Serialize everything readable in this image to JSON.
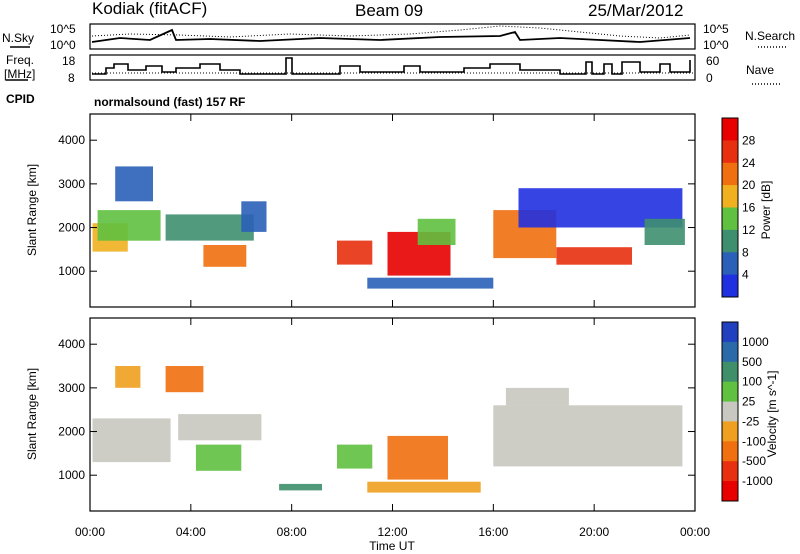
{
  "header": {
    "station": "Kodiak (fitACF)",
    "beam": "Beam 09",
    "date": "25/Mar/2012"
  },
  "summary_panel": {
    "left_labels": [
      "N.Sky",
      "Freq.",
      "[MHz]",
      "CPID"
    ],
    "right_labels": [
      "N.Search",
      "Nave"
    ],
    "noise_ticks_left": [
      "10^5",
      "10^0"
    ],
    "noise_ticks_right": [
      "10^5",
      "10^0"
    ],
    "freq_ticks": [
      "18",
      "8"
    ],
    "nave_ticks": [
      "60",
      "0"
    ],
    "cpid_text": "normalsound (fast) 157 RF"
  },
  "chart_data": [
    {
      "type": "heatmap",
      "name": "power",
      "ylabel": "Slant Range [km]",
      "xlabel": "",
      "x_range_hours": [
        0,
        24
      ],
      "ylim": [
        180,
        4600
      ],
      "y_ticks": [
        "1000",
        "2000",
        "3000",
        "4000"
      ],
      "x_ticks": [
        "00:00",
        "04:00",
        "08:00",
        "12:00",
        "16:00",
        "20:00",
        "00:00"
      ],
      "colorbar_label": "Power [dB]",
      "colorbar_ticks": [
        "4",
        "8",
        "12",
        "16",
        "20",
        "24",
        "28"
      ],
      "colorbar_colors": [
        "#2030e0",
        "#2a60b8",
        "#3e8f70",
        "#60c040",
        "#f0b020",
        "#f07010",
        "#e83010",
        "#e80000"
      ],
      "regions": [
        {
          "t0": 0.1,
          "t1": 1.5,
          "r0": 1450,
          "r1": 2100,
          "color": "#f0b020"
        },
        {
          "t0": 0.3,
          "t1": 2.8,
          "r0": 1700,
          "r1": 2400,
          "color": "#60c040"
        },
        {
          "t0": 1.0,
          "t1": 2.5,
          "r0": 2600,
          "r1": 3400,
          "color": "#2a60b8"
        },
        {
          "t0": 3.0,
          "t1": 6.5,
          "r0": 1700,
          "r1": 2300,
          "color": "#3e8f70"
        },
        {
          "t0": 4.5,
          "t1": 6.2,
          "r0": 1100,
          "r1": 1600,
          "color": "#f07010"
        },
        {
          "t0": 6.0,
          "t1": 7.0,
          "r0": 1900,
          "r1": 2600,
          "color": "#2a60b8"
        },
        {
          "t0": 9.8,
          "t1": 11.2,
          "r0": 1150,
          "r1": 1700,
          "color": "#e83010"
        },
        {
          "t0": 11.8,
          "t1": 14.3,
          "r0": 900,
          "r1": 1900,
          "color": "#e80000"
        },
        {
          "t0": 13.0,
          "t1": 14.5,
          "r0": 1600,
          "r1": 2200,
          "color": "#60c040"
        },
        {
          "t0": 11.0,
          "t1": 16.0,
          "r0": 600,
          "r1": 850,
          "color": "#2a60b8"
        },
        {
          "t0": 16.0,
          "t1": 18.5,
          "r0": 1300,
          "r1": 2400,
          "color": "#f07010"
        },
        {
          "t0": 18.5,
          "t1": 21.5,
          "r0": 1150,
          "r1": 1550,
          "color": "#e83010"
        },
        {
          "t0": 17.0,
          "t1": 23.5,
          "r0": 2000,
          "r1": 2900,
          "color": "#2030e0"
        },
        {
          "t0": 22.0,
          "t1": 23.6,
          "r0": 1600,
          "r1": 2200,
          "color": "#3e8f70"
        }
      ]
    },
    {
      "type": "heatmap",
      "name": "velocity",
      "ylabel": "Slant Range [km]",
      "xlabel": "Time UT",
      "x_range_hours": [
        0,
        24
      ],
      "ylim": [
        180,
        4600
      ],
      "y_ticks": [
        "1000",
        "2000",
        "3000",
        "4000"
      ],
      "x_ticks": [
        "00:00",
        "04:00",
        "08:00",
        "12:00",
        "16:00",
        "20:00",
        "00:00"
      ],
      "colorbar_label": "Velocity [m s^-1]",
      "colorbar_ticks": [
        "1000",
        "500",
        "100",
        "25",
        "-25",
        "-100",
        "-500",
        "-1000"
      ],
      "colorbar_colors": [
        "#2040c0",
        "#2a6aa8",
        "#3e8f6a",
        "#60c040",
        "#c8c8c0",
        "#f0a020",
        "#f07010",
        "#e83010",
        "#e80000"
      ],
      "regions": [
        {
          "t0": 0.1,
          "t1": 3.2,
          "r0": 1300,
          "r1": 2300,
          "color": "#c8c8c0"
        },
        {
          "t0": 3.5,
          "t1": 6.8,
          "r0": 1800,
          "r1": 2400,
          "color": "#c8c8c0"
        },
        {
          "t0": 1.0,
          "t1": 2.0,
          "r0": 3000,
          "r1": 3500,
          "color": "#f0a020"
        },
        {
          "t0": 3.0,
          "t1": 4.5,
          "r0": 2900,
          "r1": 3500,
          "color": "#f07010"
        },
        {
          "t0": 4.2,
          "t1": 6.0,
          "r0": 1100,
          "r1": 1700,
          "color": "#60c040"
        },
        {
          "t0": 7.5,
          "t1": 9.2,
          "r0": 650,
          "r1": 800,
          "color": "#3e8f6a"
        },
        {
          "t0": 9.8,
          "t1": 11.2,
          "r0": 1150,
          "r1": 1700,
          "color": "#60c040"
        },
        {
          "t0": 11.8,
          "t1": 14.2,
          "r0": 900,
          "r1": 1900,
          "color": "#f07010"
        },
        {
          "t0": 11.0,
          "t1": 15.5,
          "r0": 600,
          "r1": 850,
          "color": "#f0a020"
        },
        {
          "t0": 16.0,
          "t1": 23.5,
          "r0": 1200,
          "r1": 2600,
          "color": "#c8c8c0"
        },
        {
          "t0": 16.5,
          "t1": 19.0,
          "r0": 2600,
          "r1": 3000,
          "color": "#c8c8c0"
        }
      ]
    }
  ]
}
